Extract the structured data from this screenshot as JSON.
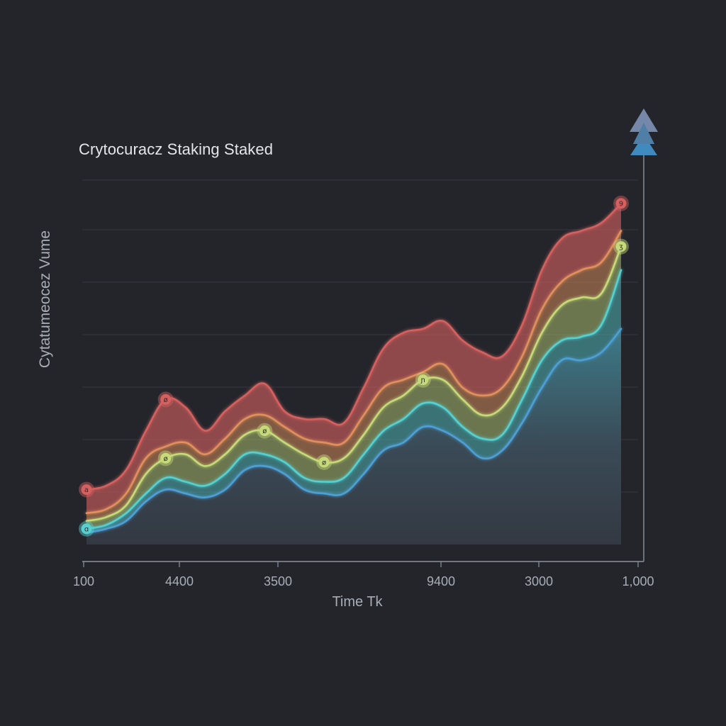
{
  "chart_data": {
    "type": "area",
    "title": "Crytocuracz Staking Staked",
    "xlabel": "Time Tk",
    "ylabel": "Cytatumeocez Vume",
    "x_tick_labels": [
      "100",
      "4400",
      "3500",
      "9400",
      "3000",
      "1,000"
    ],
    "x_positions": [
      0,
      1,
      2,
      3,
      4,
      5,
      6,
      7,
      8,
      9,
      10,
      11,
      12,
      13,
      14,
      15,
      16,
      17,
      18,
      19,
      20,
      21,
      22,
      23,
      24,
      25,
      26,
      27
    ],
    "ylim": [
      0,
      100
    ],
    "grid": true,
    "legend": "none",
    "colors": {
      "background": "#23252b",
      "grid": "#33363d",
      "axis": "#8d929b",
      "red": "#d4605f",
      "orange": "#e0905c",
      "lime": "#c6da7a",
      "cyan": "#57d0d0",
      "blue": "#4d9fd6",
      "arrow_top": "#7588aa",
      "arrow_bottom": "#3f8bbf"
    },
    "series": [
      {
        "color": "#d4605f",
        "values": [
          14,
          15,
          19,
          29,
          37,
          35,
          29,
          34,
          38,
          41,
          34,
          32,
          32,
          31,
          40,
          50,
          54,
          55,
          57,
          52,
          49,
          48,
          56,
          70,
          78,
          80,
          82,
          87
        ]
      },
      {
        "color": "#e0905c",
        "values": [
          8,
          9,
          13,
          22,
          25,
          26,
          23,
          27,
          32,
          33,
          30,
          27,
          26,
          26,
          33,
          40,
          42,
          44,
          46,
          40,
          38,
          40,
          48,
          60,
          67,
          70,
          72,
          80
        ]
      },
      {
        "color": "#c6da7a",
        "values": [
          6,
          7,
          10,
          18,
          22,
          23,
          20,
          23,
          28,
          29,
          26,
          23,
          21,
          22,
          28,
          35,
          38,
          42,
          42,
          37,
          33,
          35,
          43,
          54,
          61,
          63,
          64,
          76
        ]
      },
      {
        "color": "#57d0d0",
        "values": [
          4,
          5,
          8,
          13,
          17,
          16,
          15,
          18,
          23,
          23,
          21,
          17,
          16,
          17,
          23,
          29,
          32,
          36,
          35,
          30,
          27,
          28,
          37,
          47,
          52,
          53,
          56,
          70
        ]
      },
      {
        "color": "#4d9fd6",
        "values": [
          3,
          4,
          6,
          11,
          14,
          13,
          12,
          14,
          19,
          20,
          18,
          14,
          13,
          13,
          18,
          24,
          26,
          30,
          29,
          26,
          22,
          24,
          31,
          40,
          47,
          47,
          49,
          55
        ]
      }
    ],
    "markers": [
      {
        "series": 0,
        "index": 0,
        "label": "a"
      },
      {
        "series": 0,
        "index": 4,
        "label": "ø"
      },
      {
        "series": 0,
        "index": 27,
        "label": "9"
      },
      {
        "series": 2,
        "index": 4,
        "label": "ø"
      },
      {
        "series": 2,
        "index": 9,
        "label": "ø"
      },
      {
        "series": 2,
        "index": 12,
        "label": "ø"
      },
      {
        "series": 2,
        "index": 17,
        "label": "ɲ"
      },
      {
        "series": 2,
        "index": 27,
        "label": "ʒ"
      },
      {
        "series": 3,
        "index": 0,
        "label": "ɑ"
      }
    ]
  }
}
